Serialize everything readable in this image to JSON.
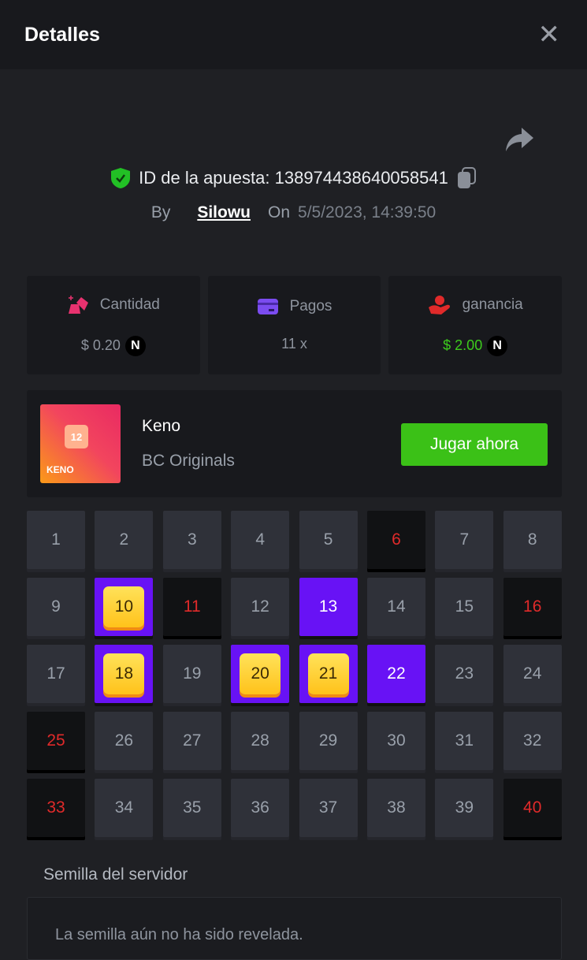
{
  "header": {
    "title": "Detalles",
    "close_icon": "close-icon"
  },
  "bet": {
    "id_label": "ID de la apuesta:",
    "id": "138974438640058541",
    "by_label": "By",
    "user": "Silowu",
    "on_label": "On",
    "date": "5/5/2023, 14:39:50"
  },
  "stats": [
    {
      "label": "Cantidad",
      "value": "$ 0.20",
      "icon": "gold-bars-icon",
      "coin": "N",
      "color": "#e8326f"
    },
    {
      "label": "Pagos",
      "value": "11 x",
      "icon": "card-icon",
      "color": "#7b4cf0"
    },
    {
      "label": "ganancia",
      "value": "$ 2.00",
      "icon": "profit-hand-icon",
      "coin": "N",
      "color": "#3dcc1c"
    }
  ],
  "game": {
    "name": "Keno",
    "provider": "BC Originals",
    "thumb_text": "KENO",
    "thumb_number": "12",
    "play_label": "Jugar ahora"
  },
  "grid": {
    "numbers": [
      1,
      2,
      3,
      4,
      5,
      6,
      7,
      8,
      9,
      10,
      11,
      12,
      13,
      14,
      15,
      16,
      17,
      18,
      19,
      20,
      21,
      22,
      23,
      24,
      25,
      26,
      27,
      28,
      29,
      30,
      31,
      32,
      33,
      34,
      35,
      36,
      37,
      38,
      39,
      40
    ],
    "hits": [
      10,
      18,
      20,
      21
    ],
    "picked": [
      13,
      22
    ],
    "drawn_not_picked": [
      6,
      11,
      16,
      25,
      33,
      40
    ]
  },
  "seed": {
    "label": "Semilla del servidor",
    "value": "La semilla aún no ha sido revelada."
  }
}
